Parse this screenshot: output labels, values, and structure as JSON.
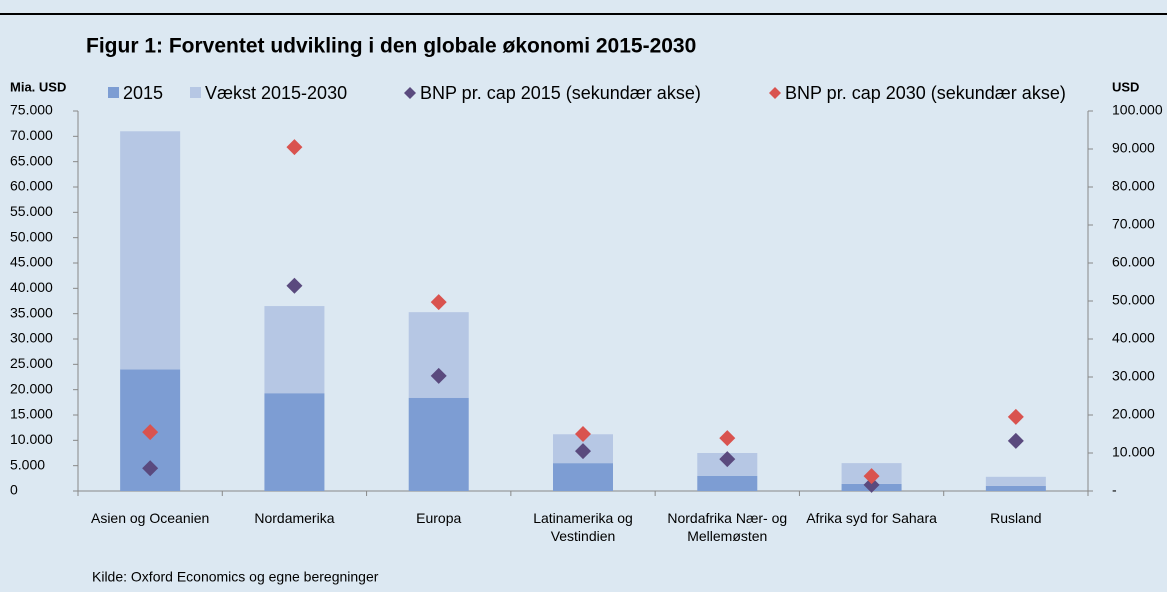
{
  "chart_data": {
    "type": "bar_scatter",
    "title": "Figur 1: Forventet udvikling i den globale økonomi 2015-2030",
    "ylabel": "Mia. USD",
    "y2label": "USD",
    "source": "Kilde: Oxford Economics og egne beregninger",
    "categories": [
      "Asien og Oceanien",
      "Nordamerika",
      "Europa",
      "Latinamerika og Vestindien",
      "Nordafrika Nær- og Mellemøsten",
      "Afrika syd for Sahara",
      "Rusland"
    ],
    "series": [
      {
        "name": "2015",
        "color": "#7d9dd3",
        "values": [
          24000,
          19300,
          18400,
          5500,
          3000,
          1400,
          1000
        ]
      },
      {
        "name": "Vækst 2015-2030",
        "color": "#b6c7e4",
        "values": [
          47000,
          17200,
          16900,
          5700,
          4500,
          4100,
          1800
        ]
      },
      {
        "name": "BNP pr. cap 2015 (sekundær akse)",
        "color": "#5a4a7e",
        "axis": "y2",
        "values": [
          6000,
          54000,
          30300,
          10500,
          8400,
          1600,
          13200
        ]
      },
      {
        "name": "BNP pr. cap 2030 (sekundær akse)",
        "color": "#d9534f",
        "axis": "y2",
        "values": [
          15500,
          90500,
          49700,
          15000,
          13900,
          3900,
          19500
        ]
      }
    ],
    "ylim": [
      0,
      75000
    ],
    "yticks": [
      0,
      {
        "value": 5000,
        "label": "5.000"
      },
      {
        "value": 10000,
        "label": "10.000"
      },
      {
        "value": 15000,
        "label": "15.000"
      },
      {
        "value": 20000,
        "label": "20.000"
      },
      {
        "value": 25000,
        "label": "25.000"
      },
      {
        "value": 30000,
        "label": "30.000"
      },
      {
        "value": 35000,
        "label": "35.000"
      },
      {
        "value": 40000,
        "label": "40.000"
      },
      {
        "value": 45000,
        "label": "45.000"
      },
      {
        "value": 50000,
        "label": "50.000"
      },
      {
        "value": 55000,
        "label": "55.000"
      },
      {
        "value": 60000,
        "label": "60.000"
      },
      {
        "value": 65000,
        "label": "65.000"
      },
      {
        "value": 70000,
        "label": "70.000"
      },
      {
        "value": 75000,
        "label": "75.000"
      }
    ],
    "y2lim": [
      0,
      100000
    ],
    "y2ticks": [
      {
        "value": 0,
        "label": "-"
      },
      {
        "value": 10000,
        "label": "10.000"
      },
      {
        "value": 20000,
        "label": "20.000"
      },
      {
        "value": 30000,
        "label": "30.000"
      },
      {
        "value": 40000,
        "label": "40.000"
      },
      {
        "value": 50000,
        "label": "50.000"
      },
      {
        "value": 60000,
        "label": "60.000"
      },
      {
        "value": 70000,
        "label": "70.000"
      },
      {
        "value": 80000,
        "label": "80.000"
      },
      {
        "value": 90000,
        "label": "90.000"
      },
      {
        "value": 100000,
        "label": "100.000"
      }
    ]
  }
}
